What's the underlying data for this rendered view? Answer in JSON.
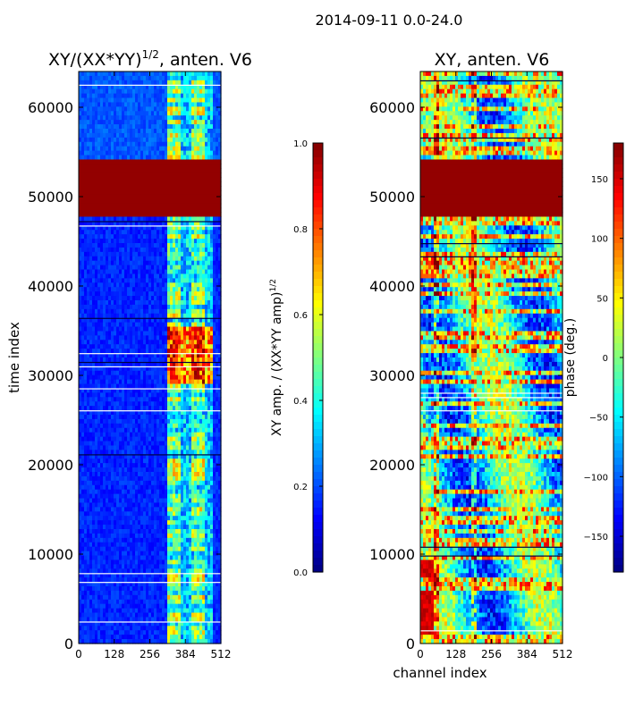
{
  "suptitle": "2014-09-11 0.0-24.0",
  "colors": {
    "jet": [
      "#00007f",
      "#0000ff",
      "#007fff",
      "#00ffff",
      "#7fff7f",
      "#ffff00",
      "#ff7f00",
      "#ff0000",
      "#7f0000"
    ]
  },
  "chart_data": [
    {
      "type": "heatmap",
      "title_main": "XY/(XX*YY)",
      "title_sup": "1/2",
      "title_tail": ", anten. V6",
      "xlabel": "",
      "ylabel": "time index",
      "xlim": [
        0,
        512
      ],
      "ylim": [
        0,
        64000
      ],
      "xticks": [
        0,
        128,
        256,
        384,
        512
      ],
      "yticks": [
        0,
        10000,
        20000,
        30000,
        40000,
        50000,
        60000
      ],
      "colorbar": {
        "label_main": "XY amp. / (XX*YY amp)",
        "label_sup": "1/2",
        "range": [
          0.0,
          1.0
        ],
        "ticks": [
          "0.0",
          "0.2",
          "0.4",
          "0.6",
          "0.8",
          "1.0"
        ]
      },
      "saturated_band": [
        48000,
        54000
      ],
      "bright_region_channels": [
        320,
        480
      ],
      "hot_spot": {
        "channels": [
          320,
          480
        ],
        "time": [
          29000,
          35500
        ]
      }
    },
    {
      "type": "heatmap",
      "title": "XY, anten. V6",
      "xlabel": "channel index",
      "ylabel": "",
      "xlim": [
        0,
        512
      ],
      "ylim": [
        0,
        64000
      ],
      "xticks": [
        0,
        128,
        256,
        384,
        512
      ],
      "yticks": [
        0,
        10000,
        20000,
        30000,
        40000,
        50000,
        60000
      ],
      "colorbar": {
        "label": "phase (deg.)",
        "range": [
          -180,
          180
        ],
        "ticks": [
          "−150",
          "−100",
          "−50",
          "0",
          "50",
          "100",
          "150"
        ]
      },
      "saturated_band": [
        48000,
        54000
      ]
    }
  ]
}
